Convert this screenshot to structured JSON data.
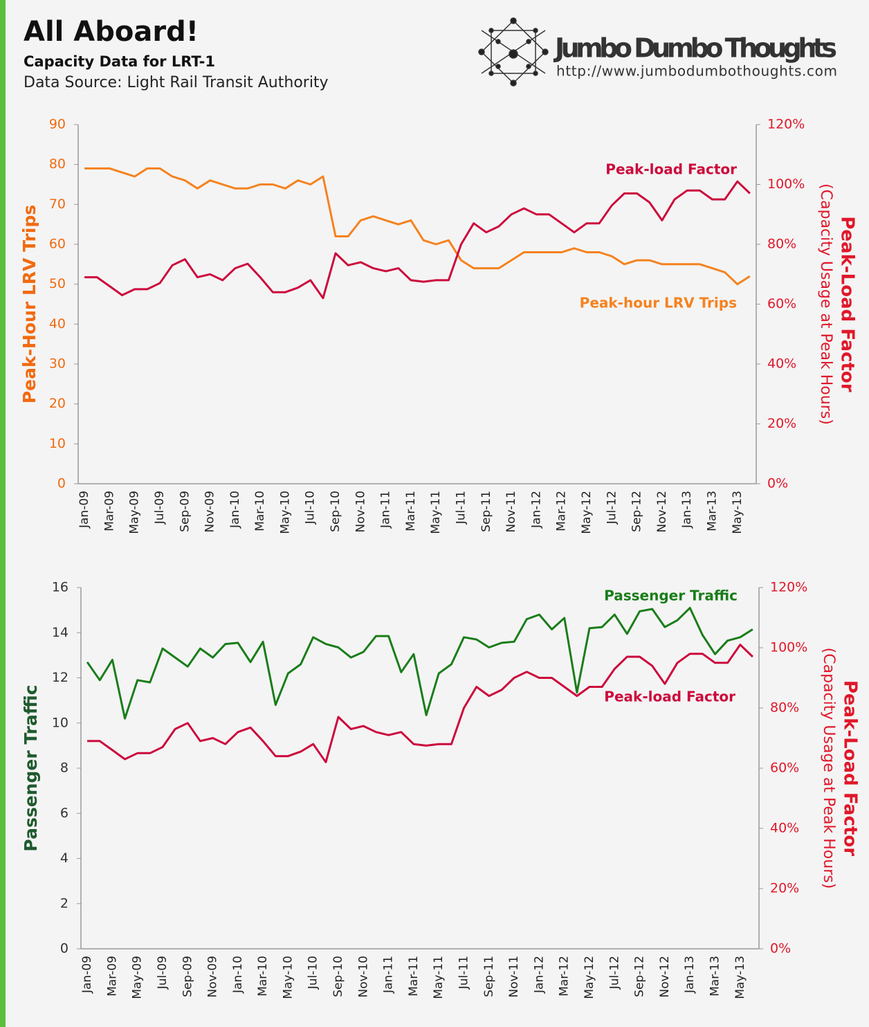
{
  "header": {
    "title": "All Aboard!",
    "subtitle": "Capacity Data for LRT-1",
    "source": "Data Source: Light Rail Transit Authority",
    "logo_name": "Jumbo Dumbo Thoughts",
    "logo_url": "http://www.jumbodumbothoughts.com"
  },
  "chart_data": [
    {
      "type": "line",
      "categories": [
        "Jan-09",
        null,
        "Mar-09",
        null,
        "May-09",
        null,
        "Jul-09",
        null,
        "Sep-09",
        null,
        "Nov-09",
        null,
        "Jan-10",
        null,
        "Mar-10",
        null,
        "May-10",
        null,
        "Jul-10",
        null,
        "Sep-10",
        null,
        "Nov-10",
        null,
        "Jan-11",
        null,
        "Mar-11",
        null,
        "May-11",
        null,
        "Jul-11",
        null,
        "Sep-11",
        null,
        "Nov-11",
        null,
        "Jan-12",
        null,
        "Mar-12",
        null,
        "May-12",
        null,
        "Jul-12",
        null,
        "Sep-12",
        null,
        "Nov-12",
        null,
        "Jan-13",
        null,
        "Mar-13",
        null,
        "May-13",
        null
      ],
      "y_label": "Peak-Hour LRV Trips",
      "y2_label": "Peak-Load Factor",
      "y2_sublabel": "(Capacity Usage at Peak Hours)",
      "ylim": [
        0,
        90
      ],
      "yticks": [
        0,
        10,
        20,
        30,
        40,
        50,
        60,
        70,
        80,
        90
      ],
      "y2lim": [
        0,
        120
      ],
      "y2ticks": [
        {
          "value": 0,
          "label": "0%"
        },
        {
          "value": 20,
          "label": "20%"
        },
        {
          "value": 40,
          "label": "40%"
        },
        {
          "value": 60,
          "label": "60%"
        },
        {
          "value": 80,
          "label": "80%"
        },
        {
          "value": 100,
          "label": "100%"
        },
        {
          "value": 120,
          "label": "120%"
        }
      ],
      "y_color": "#f26a0f",
      "y2_color": "#e0182a",
      "series": [
        {
          "name": "Peak-hour LRV Trips",
          "color": "#f5821f",
          "axis": "y",
          "values": [
            79,
            79,
            79,
            78,
            77,
            79,
            79,
            77,
            76,
            74,
            76,
            75,
            74,
            74,
            75,
            75,
            74,
            76,
            75,
            77,
            62,
            62,
            66,
            67,
            66,
            65,
            66,
            61,
            60,
            61,
            56,
            54,
            54,
            54,
            56,
            58,
            58,
            58,
            58,
            59,
            58,
            58,
            57,
            55,
            56,
            56,
            55,
            55,
            55,
            55,
            54,
            53,
            50,
            52
          ]
        },
        {
          "name": "Peak-load Factor",
          "color": "#cc0a3c",
          "axis": "y2",
          "values": [
            69,
            69,
            66,
            63,
            65,
            65,
            67,
            73,
            75,
            69,
            70,
            68,
            72,
            73.5,
            69,
            64,
            64,
            65.5,
            68,
            62,
            77,
            73,
            74,
            72,
            71,
            72,
            68,
            67.5,
            68,
            68,
            80,
            87,
            84,
            86,
            90,
            92,
            90,
            90,
            87,
            84,
            87,
            87,
            93,
            97,
            97,
            94,
            88,
            95,
            98,
            98,
            95,
            95,
            101,
            97
          ]
        }
      ]
    },
    {
      "type": "line",
      "categories": [
        "Jan-09",
        null,
        "Mar-09",
        null,
        "May-09",
        null,
        "Jul-09",
        null,
        "Sep-09",
        null,
        "Nov-09",
        null,
        "Jan-10",
        null,
        "Mar-10",
        null,
        "May-10",
        null,
        "Jul-10",
        null,
        "Sep-10",
        null,
        "Nov-10",
        null,
        "Jan-11",
        null,
        "Mar-11",
        null,
        "May-11",
        null,
        "Jul-11",
        null,
        "Sep-11",
        null,
        "Nov-11",
        null,
        "Jan-12",
        null,
        "Mar-12",
        null,
        "May-12",
        null,
        "Jul-12",
        null,
        "Sep-12",
        null,
        "Nov-12",
        null,
        "Jan-13",
        null,
        "Mar-13",
        null,
        "May-13",
        null
      ],
      "y_label": "Passenger Traffic",
      "y2_label": "Peak-Load Factor",
      "y2_sublabel": "(Capacity Usage at Peak Hours)",
      "ylim": [
        0,
        16
      ],
      "yticks": [
        0,
        2,
        4,
        6,
        8,
        10,
        12,
        14,
        16
      ],
      "y2lim": [
        0,
        120
      ],
      "y2ticks": [
        {
          "value": 0,
          "label": "0%"
        },
        {
          "value": 20,
          "label": "20%"
        },
        {
          "value": 40,
          "label": "40%"
        },
        {
          "value": 60,
          "label": "60%"
        },
        {
          "value": 80,
          "label": "80%"
        },
        {
          "value": 100,
          "label": "100%"
        },
        {
          "value": 120,
          "label": "120%"
        }
      ],
      "y_color": "#1f5a2e",
      "y2_color": "#e0182a",
      "series": [
        {
          "name": "Passenger Traffic",
          "color": "#1a7d1a",
          "axis": "y",
          "values": [
            12.7,
            11.9,
            12.8,
            10.2,
            11.9,
            11.8,
            13.3,
            12.9,
            12.5,
            13.3,
            12.9,
            13.5,
            13.55,
            12.7,
            13.6,
            10.8,
            12.2,
            12.6,
            13.8,
            13.5,
            13.35,
            12.9,
            13.15,
            13.85,
            13.85,
            12.25,
            13.05,
            10.35,
            12.2,
            12.6,
            13.8,
            13.7,
            13.35,
            13.55,
            13.6,
            14.6,
            14.8,
            14.15,
            14.65,
            11.35,
            14.2,
            14.25,
            14.8,
            13.95,
            14.95,
            15.05,
            14.25,
            14.55,
            15.1,
            13.9,
            13.05,
            13.65,
            13.8,
            14.15
          ]
        },
        {
          "name": "Peak-load Factor",
          "color": "#cc0a3c",
          "axis": "y2",
          "values": [
            69,
            69,
            66,
            63,
            65,
            65,
            67,
            73,
            75,
            69,
            70,
            68,
            72,
            73.5,
            69,
            64,
            64,
            65.5,
            68,
            62,
            77,
            73,
            74,
            72,
            71,
            72,
            68,
            67.5,
            68,
            68,
            80,
            87,
            84,
            86,
            90,
            92,
            90,
            90,
            87,
            84,
            87,
            87,
            93,
            97,
            97,
            94,
            88,
            95,
            98,
            98,
            95,
            95,
            101,
            97
          ]
        }
      ]
    }
  ]
}
